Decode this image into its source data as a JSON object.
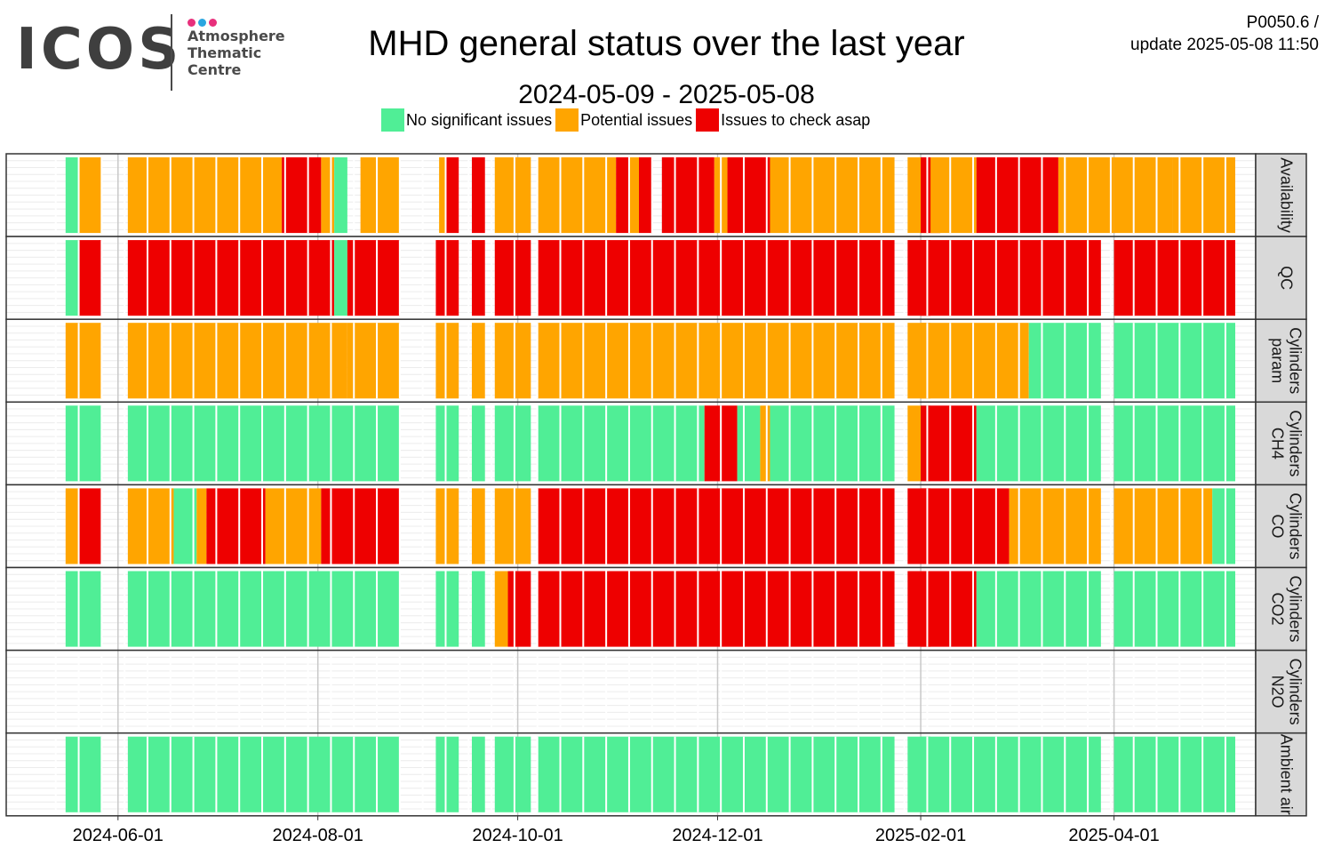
{
  "logo": {
    "wordmark": "ICOS",
    "line1": "Atmosphere",
    "line2": "Thematic",
    "line3": "Centre",
    "dot_colors": [
      "#e8307c",
      "#2aa6e0",
      "#e8307c"
    ]
  },
  "header": {
    "title": "MHD general status over the last year",
    "subtitle": "2024-05-09 - 2025-05-08",
    "code": "P0050.6 /",
    "update": "update  2025-05-08 11:50"
  },
  "colors": {
    "G": "#50ee96",
    "O": "#ffa500",
    "R": "#ee0000"
  },
  "legend": [
    {
      "key": "G",
      "label": "No significant issues"
    },
    {
      "key": "O",
      "label": "Potential issues"
    },
    {
      "key": "R",
      "label": "Issues to check asap"
    }
  ],
  "chart_data": {
    "type": "heatmap",
    "title": "MHD general status over the last year",
    "subtitle": "2024-05-09 - 2025-05-08",
    "x_range": [
      "2024-05-09",
      "2025-05-08"
    ],
    "x_ticks": [
      "2024-06-01",
      "2024-08-01",
      "2024-10-01",
      "2024-12-01",
      "2025-02-01",
      "2025-04-01"
    ],
    "grid": true,
    "legend_position": "top",
    "bin": "week",
    "note_codes": "G = No significant issues, O = Potential issues, R = Issues to check asap",
    "panels": [
      {
        "name": "Availability",
        "lines": [
          "Availability"
        ],
        "segments": [
          [
            "2024-05-16",
            "2024-05-20",
            "G"
          ],
          [
            "2024-05-20",
            "2024-05-27",
            "O"
          ],
          [
            "2024-06-04",
            "2024-07-21",
            "O"
          ],
          [
            "2024-07-21",
            "2024-08-02",
            "R"
          ],
          [
            "2024-08-02",
            "2024-08-06",
            "O"
          ],
          [
            "2024-08-06",
            "2024-08-10",
            "G"
          ],
          [
            "2024-08-14",
            "2024-08-26",
            "O"
          ],
          [
            "2024-09-07",
            "2024-09-09",
            "O"
          ],
          [
            "2024-09-09",
            "2024-09-13",
            "R"
          ],
          [
            "2024-09-17",
            "2024-09-21",
            "R"
          ],
          [
            "2024-09-24",
            "2024-10-05",
            "O"
          ],
          [
            "2024-10-07",
            "2024-10-31",
            "O"
          ],
          [
            "2024-10-31",
            "2024-11-04",
            "R"
          ],
          [
            "2024-11-04",
            "2024-11-07",
            "O"
          ],
          [
            "2024-11-07",
            "2024-11-11",
            "R"
          ],
          [
            "2024-11-14",
            "2024-11-30",
            "R"
          ],
          [
            "2024-11-30",
            "2024-12-04",
            "O"
          ],
          [
            "2024-12-04",
            "2024-12-17",
            "R"
          ],
          [
            "2024-12-17",
            "2025-01-24",
            "O"
          ],
          [
            "2025-01-28",
            "2025-02-01",
            "O"
          ],
          [
            "2025-02-01",
            "2025-02-07",
            "O"
          ],
          [
            "2025-02-07",
            "2025-02-04",
            "R"
          ],
          [
            "2025-02-01",
            "2025-02-04",
            "R"
          ],
          [
            "2025-02-04",
            "2025-02-18",
            "O"
          ],
          [
            "2025-02-18",
            "2025-03-15",
            "R"
          ],
          [
            "2025-03-15",
            "2025-04-01",
            "O"
          ],
          [
            "2025-04-01",
            "2025-04-19",
            "O"
          ],
          [
            "2025-04-19",
            "2025-05-08",
            "O"
          ]
        ]
      },
      {
        "name": "QC",
        "lines": [
          "QC"
        ],
        "segments": [
          [
            "2024-05-16",
            "2024-05-20",
            "G"
          ],
          [
            "2024-05-20",
            "2024-05-27",
            "R"
          ],
          [
            "2024-06-04",
            "2024-08-06",
            "R"
          ],
          [
            "2024-08-06",
            "2024-08-10",
            "G"
          ],
          [
            "2024-08-10",
            "2024-08-26",
            "R"
          ],
          [
            "2024-09-06",
            "2024-09-13",
            "R"
          ],
          [
            "2024-09-17",
            "2024-09-21",
            "R"
          ],
          [
            "2024-09-24",
            "2024-10-05",
            "R"
          ],
          [
            "2024-10-07",
            "2024-11-07",
            "R"
          ],
          [
            "2024-11-07",
            "2025-01-24",
            "R"
          ],
          [
            "2025-01-28",
            "2025-02-04",
            "R"
          ],
          [
            "2025-02-01",
            "2025-03-28",
            "R"
          ],
          [
            "2025-04-01",
            "2025-05-08",
            "R"
          ]
        ]
      },
      {
        "name": "Cylinders param",
        "lines": [
          "Cylinders",
          "param"
        ],
        "segments": [
          [
            "2024-05-16",
            "2024-05-27",
            "O"
          ],
          [
            "2024-06-04",
            "2024-08-10",
            "O"
          ],
          [
            "2024-08-10",
            "2024-08-26",
            "O"
          ],
          [
            "2024-09-06",
            "2024-09-13",
            "O"
          ],
          [
            "2024-09-17",
            "2024-09-21",
            "O"
          ],
          [
            "2024-09-24",
            "2024-10-05",
            "O"
          ],
          [
            "2024-10-07",
            "2024-11-07",
            "O"
          ],
          [
            "2024-11-07",
            "2025-01-24",
            "O"
          ],
          [
            "2025-01-28",
            "2025-02-04",
            "O"
          ],
          [
            "2025-02-01",
            "2025-03-06",
            "O"
          ],
          [
            "2025-03-06",
            "2025-03-28",
            "G"
          ],
          [
            "2025-04-01",
            "2025-05-08",
            "G"
          ]
        ]
      },
      {
        "name": "Cylinders CH4",
        "lines": [
          "Cylinders",
          "CH4"
        ],
        "segments": [
          [
            "2024-05-16",
            "2024-05-27",
            "G"
          ],
          [
            "2024-06-04",
            "2024-08-26",
            "G"
          ],
          [
            "2024-09-06",
            "2024-09-13",
            "G"
          ],
          [
            "2024-09-17",
            "2024-09-21",
            "G"
          ],
          [
            "2024-09-24",
            "2024-10-05",
            "G"
          ],
          [
            "2024-10-07",
            "2024-11-07",
            "G"
          ],
          [
            "2024-11-07",
            "2024-11-27",
            "G"
          ],
          [
            "2024-11-27",
            "2024-12-07",
            "R"
          ],
          [
            "2024-12-07",
            "2024-12-14",
            "G"
          ],
          [
            "2024-12-14",
            "2024-12-17",
            "O"
          ],
          [
            "2024-12-17",
            "2025-01-24",
            "G"
          ],
          [
            "2025-01-28",
            "2025-02-01",
            "O"
          ],
          [
            "2025-02-01",
            "2025-02-04",
            "G"
          ],
          [
            "2025-02-01",
            "2025-02-18",
            "R"
          ],
          [
            "2025-02-18",
            "2025-03-28",
            "G"
          ],
          [
            "2025-04-01",
            "2025-05-08",
            "G"
          ]
        ]
      },
      {
        "name": "Cylinders CO",
        "lines": [
          "Cylinders",
          "CO"
        ],
        "segments": [
          [
            "2024-05-16",
            "2024-05-20",
            "O"
          ],
          [
            "2024-05-20",
            "2024-05-27",
            "R"
          ],
          [
            "2024-06-04",
            "2024-06-18",
            "O"
          ],
          [
            "2024-06-18",
            "2024-06-25",
            "G"
          ],
          [
            "2024-06-25",
            "2024-06-28",
            "O"
          ],
          [
            "2024-06-28",
            "2024-07-16",
            "R"
          ],
          [
            "2024-07-16",
            "2024-08-02",
            "O"
          ],
          [
            "2024-08-02",
            "2024-08-26",
            "R"
          ],
          [
            "2024-09-06",
            "2024-09-13",
            "O"
          ],
          [
            "2024-09-17",
            "2024-09-21",
            "O"
          ],
          [
            "2024-09-24",
            "2024-10-05",
            "O"
          ],
          [
            "2024-10-07",
            "2025-01-24",
            "R"
          ],
          [
            "2025-01-28",
            "2025-02-04",
            "R"
          ],
          [
            "2025-02-01",
            "2025-02-28",
            "R"
          ],
          [
            "2025-02-28",
            "2025-03-28",
            "O"
          ],
          [
            "2025-04-01",
            "2025-05-01",
            "O"
          ],
          [
            "2025-05-01",
            "2025-05-08",
            "G"
          ]
        ]
      },
      {
        "name": "Cylinders CO2",
        "lines": [
          "Cylinders",
          "CO2"
        ],
        "segments": [
          [
            "2024-05-16",
            "2024-05-27",
            "G"
          ],
          [
            "2024-06-04",
            "2024-08-26",
            "G"
          ],
          [
            "2024-09-06",
            "2024-09-13",
            "G"
          ],
          [
            "2024-09-17",
            "2024-09-21",
            "G"
          ],
          [
            "2024-09-24",
            "2024-09-28",
            "O"
          ],
          [
            "2024-09-28",
            "2024-10-05",
            "R"
          ],
          [
            "2024-10-07",
            "2025-01-24",
            "R"
          ],
          [
            "2025-01-28",
            "2025-02-04",
            "R"
          ],
          [
            "2025-02-01",
            "2025-02-18",
            "R"
          ],
          [
            "2025-02-18",
            "2025-03-28",
            "G"
          ],
          [
            "2025-04-01",
            "2025-05-08",
            "G"
          ]
        ]
      },
      {
        "name": "Cylinders N2O",
        "lines": [
          "Cylinders",
          "N2O"
        ],
        "segments": []
      },
      {
        "name": "Ambient air",
        "lines": [
          "Ambient air"
        ],
        "segments": [
          [
            "2024-05-16",
            "2024-05-27",
            "G"
          ],
          [
            "2024-06-04",
            "2024-08-26",
            "G"
          ],
          [
            "2024-09-06",
            "2024-09-13",
            "G"
          ],
          [
            "2024-09-17",
            "2024-09-21",
            "G"
          ],
          [
            "2024-09-24",
            "2024-10-05",
            "G"
          ],
          [
            "2024-10-07",
            "2025-01-24",
            "G"
          ],
          [
            "2025-01-28",
            "2025-02-04",
            "G"
          ],
          [
            "2025-02-01",
            "2025-03-28",
            "G"
          ],
          [
            "2025-04-01",
            "2025-05-08",
            "G"
          ]
        ]
      }
    ]
  }
}
